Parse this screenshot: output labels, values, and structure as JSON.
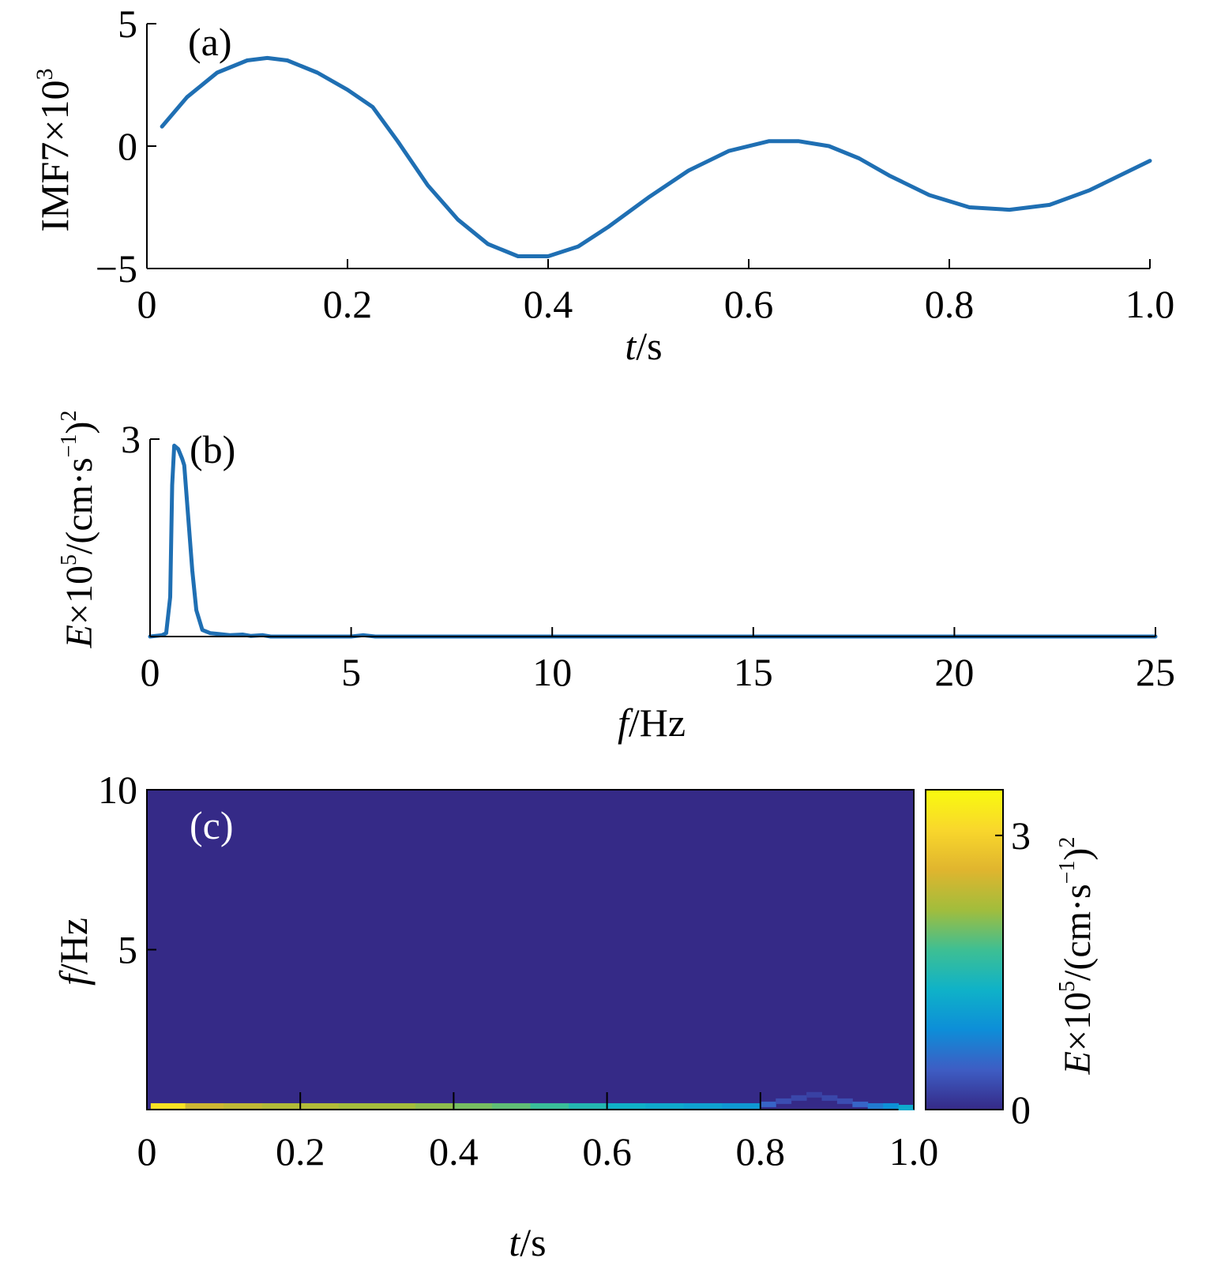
{
  "chart_data": [
    {
      "id": "a",
      "type": "line",
      "panel_label": "(a)",
      "ylabel": {
        "base": "IMF7×10",
        "sup": "3"
      },
      "xlabel": {
        "var": "t",
        "unit": "/s"
      },
      "xlim": [
        0,
        1.0
      ],
      "ylim": [
        -5,
        5
      ],
      "xticks": [
        {
          "v": 0,
          "label": "0"
        },
        {
          "v": 0.2,
          "label": "0.2"
        },
        {
          "v": 0.4,
          "label": "0.4"
        },
        {
          "v": 0.6,
          "label": "0.6"
        },
        {
          "v": 0.8,
          "label": "0.8"
        },
        {
          "v": 1.0,
          "label": "1.0"
        }
      ],
      "yticks": [
        {
          "v": -5,
          "label": "−5"
        },
        {
          "v": 0,
          "label": "0"
        },
        {
          "v": 5,
          "label": "5"
        }
      ],
      "color": "#1f6fb3",
      "series": [
        {
          "x": [
            0.015,
            0.04,
            0.07,
            0.1,
            0.12,
            0.14,
            0.17,
            0.2,
            0.225,
            0.25,
            0.28,
            0.31,
            0.34,
            0.37,
            0.4,
            0.43,
            0.46,
            0.5,
            0.54,
            0.58,
            0.62,
            0.65,
            0.68,
            0.71,
            0.74,
            0.78,
            0.82,
            0.86,
            0.9,
            0.94,
            0.98,
            1.0
          ],
          "y": [
            0.8,
            2.0,
            3.0,
            3.5,
            3.6,
            3.5,
            3.0,
            2.3,
            1.6,
            0.2,
            -1.6,
            -3.0,
            -4.0,
            -4.5,
            -4.5,
            -4.1,
            -3.3,
            -2.1,
            -1.0,
            -0.2,
            0.2,
            0.2,
            0.0,
            -0.5,
            -1.2,
            -2.0,
            -2.5,
            -2.6,
            -2.4,
            -1.8,
            -1.0,
            -0.6
          ]
        }
      ]
    },
    {
      "id": "b",
      "type": "line",
      "panel_label": "(b)",
      "ylabel": {
        "var": "E",
        "base": "×10",
        "sup1": "5",
        "mid": "/(cm·s",
        "sup2": "−1",
        "end": ")",
        "sup3": "2"
      },
      "xlabel": {
        "var": "f",
        "unit": "/Hz"
      },
      "xlim": [
        0,
        25
      ],
      "ylim": [
        0,
        3
      ],
      "xticks": [
        {
          "v": 0,
          "label": "0"
        },
        {
          "v": 5,
          "label": "5"
        },
        {
          "v": 10,
          "label": "10"
        },
        {
          "v": 15,
          "label": "15"
        },
        {
          "v": 20,
          "label": "20"
        },
        {
          "v": 25,
          "label": "25"
        }
      ],
      "yticks": [
        {
          "v": 3,
          "label": "3"
        }
      ],
      "color": "#1f6fb3",
      "series": [
        {
          "x": [
            0,
            0.3,
            0.4,
            0.5,
            0.55,
            0.6,
            0.7,
            0.8,
            0.85,
            0.95,
            1.05,
            1.15,
            1.3,
            1.5,
            1.7,
            2.0,
            2.3,
            2.5,
            2.8,
            3.0,
            5.0,
            5.3,
            5.6,
            25
          ],
          "y": [
            0,
            0.02,
            0.05,
            0.6,
            2.3,
            2.9,
            2.85,
            2.7,
            2.6,
            1.8,
            1.0,
            0.4,
            0.1,
            0.05,
            0.04,
            0.02,
            0.03,
            0.01,
            0.02,
            0.0,
            0.0,
            0.02,
            0.0,
            0.0
          ]
        }
      ]
    },
    {
      "id": "c",
      "type": "heatmap",
      "panel_label": "(c)",
      "ylabel": {
        "var": "f",
        "unit": "/Hz"
      },
      "xlabel": {
        "var": "t",
        "unit": "/s"
      },
      "xlim": [
        0,
        1.0
      ],
      "ylim": [
        0,
        10
      ],
      "xticks": [
        {
          "v": 0,
          "label": "0"
        },
        {
          "v": 0.2,
          "label": "0.2"
        },
        {
          "v": 0.4,
          "label": "0.4"
        },
        {
          "v": 0.6,
          "label": "0.6"
        },
        {
          "v": 0.8,
          "label": "0.8"
        },
        {
          "v": 1.0,
          "label": "1.0"
        }
      ],
      "yticks": [
        {
          "v": 5,
          "label": "5"
        },
        {
          "v": 10,
          "label": "10"
        }
      ],
      "background_color": "#352a87",
      "ridge": {
        "t": [
          0.005,
          0.05,
          0.1,
          0.15,
          0.2,
          0.25,
          0.3,
          0.35,
          0.4,
          0.45,
          0.5,
          0.55,
          0.6,
          0.65,
          0.7,
          0.75,
          0.8,
          0.82,
          0.84,
          0.86,
          0.88,
          0.9,
          0.92,
          0.94,
          0.96,
          0.98,
          1.0
        ],
        "f": [
          0.1,
          0.1,
          0.1,
          0.1,
          0.1,
          0.1,
          0.1,
          0.1,
          0.1,
          0.1,
          0.1,
          0.1,
          0.1,
          0.1,
          0.1,
          0.1,
          0.15,
          0.25,
          0.35,
          0.45,
          0.35,
          0.25,
          0.15,
          0.1,
          0.1,
          0.05,
          0.05
        ],
        "e": [
          3.2,
          2.5,
          2.4,
          2.3,
          2.3,
          2.2,
          2.2,
          2.1,
          2.0,
          1.9,
          1.7,
          1.5,
          1.3,
          1.2,
          1.1,
          1.0,
          0.5,
          0.3,
          0.25,
          0.2,
          0.25,
          0.3,
          0.5,
          0.7,
          0.9,
          1.2,
          1.5
        ]
      },
      "colorbar": {
        "range": [
          0,
          3.5
        ],
        "ticks": [
          {
            "v": 0,
            "label": "0"
          },
          {
            "v": 3,
            "label": "3"
          }
        ],
        "colormap": [
          "#352a87",
          "#3e5dc4",
          "#0d8ed8",
          "#0fb2c8",
          "#3ebf93",
          "#a2bd3c",
          "#e0b52e",
          "#f9d72c",
          "#f9fb0e"
        ],
        "label": {
          "var": "E",
          "base": "×10",
          "sup1": "5",
          "mid": "/(cm·s",
          "sup2": "−1",
          "end": ")",
          "sup3": "2"
        }
      }
    }
  ]
}
